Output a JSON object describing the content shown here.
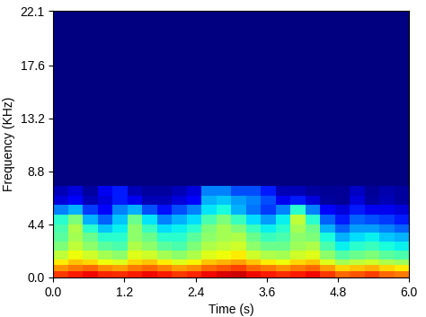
{
  "chart_data": {
    "type": "heatmap",
    "x_label": "Time (s)",
    "y_label": "Frequency (KHz)",
    "color": "jet",
    "xlim": [
      0,
      6.0
    ],
    "ylim": [
      0,
      22.1
    ],
    "xticks": [
      {
        "value": 0,
        "label": "0.0"
      },
      1.2,
      2.4,
      3.6,
      4.8,
      {
        "value": 6,
        "label": "6.0"
      }
    ],
    "yticks": [
      {
        "value": 0,
        "label": "0.0"
      },
      4.4,
      8.8,
      13.2,
      17.6,
      22.1
    ],
    "x_edges": [
      0,
      0.25,
      0.5,
      0.75,
      1.0,
      1.25,
      1.5,
      1.75,
      2.0,
      2.25,
      2.5,
      2.75,
      3.0,
      3.25,
      3.5,
      3.75,
      4.0,
      4.25,
      4.5,
      4.75,
      5.0,
      5.25,
      5.5,
      5.75,
      6.0
    ],
    "y_edges": [
      0,
      0.5,
      1.0,
      1.5,
      2.2,
      3.0,
      3.7,
      4.4,
      5.2,
      6.0,
      6.8,
      7.6,
      8.8,
      22.1
    ],
    "clim": [
      0,
      100
    ],
    "cells": [
      [
        85,
        88,
        90,
        87,
        86,
        88,
        90,
        88,
        85,
        87,
        90,
        92,
        93,
        90,
        88,
        86,
        88,
        90,
        85,
        80,
        82,
        84,
        80,
        78
      ],
      [
        75,
        78,
        80,
        76,
        74,
        78,
        80,
        77,
        74,
        76,
        80,
        82,
        84,
        80,
        78,
        75,
        78,
        80,
        74,
        68,
        70,
        72,
        68,
        66
      ],
      [
        66,
        70,
        68,
        64,
        62,
        68,
        70,
        66,
        62,
        65,
        70,
        72,
        74,
        70,
        66,
        64,
        68,
        70,
        62,
        55,
        58,
        60,
        56,
        54
      ],
      [
        58,
        64,
        60,
        55,
        52,
        62,
        60,
        55,
        52,
        56,
        62,
        64,
        66,
        60,
        56,
        55,
        60,
        62,
        52,
        45,
        48,
        50,
        46,
        44
      ],
      [
        50,
        58,
        52,
        46,
        44,
        56,
        52,
        46,
        44,
        50,
        56,
        58,
        60,
        52,
        48,
        48,
        54,
        56,
        44,
        36,
        40,
        42,
        38,
        36
      ],
      [
        46,
        55,
        48,
        40,
        40,
        52,
        48,
        40,
        40,
        46,
        52,
        55,
        56,
        48,
        42,
        44,
        52,
        50,
        38,
        30,
        34,
        36,
        32,
        30
      ],
      [
        44,
        56,
        40,
        32,
        36,
        52,
        42,
        34,
        36,
        40,
        50,
        55,
        50,
        42,
        36,
        40,
        55,
        48,
        30,
        22,
        28,
        28,
        25,
        22
      ],
      [
        40,
        50,
        30,
        22,
        32,
        48,
        35,
        25,
        30,
        34,
        44,
        50,
        42,
        34,
        28,
        36,
        58,
        40,
        22,
        15,
        22,
        20,
        18,
        15
      ],
      [
        25,
        30,
        18,
        12,
        25,
        30,
        20,
        14,
        20,
        25,
        35,
        38,
        30,
        24,
        18,
        25,
        40,
        25,
        12,
        8,
        15,
        10,
        10,
        8
      ],
      [
        8,
        12,
        5,
        8,
        15,
        10,
        5,
        5,
        8,
        12,
        30,
        32,
        28,
        25,
        20,
        10,
        15,
        8,
        3,
        2,
        8,
        3,
        5,
        3
      ],
      [
        5,
        8,
        3,
        10,
        15,
        5,
        3,
        3,
        5,
        8,
        25,
        25,
        20,
        20,
        15,
        5,
        5,
        3,
        2,
        2,
        6,
        2,
        4,
        3
      ],
      [
        0,
        0,
        0,
        0,
        0,
        0,
        0,
        0,
        0,
        0,
        0,
        0,
        0,
        0,
        0,
        0,
        0,
        0,
        0,
        0,
        0,
        0,
        0,
        0
      ],
      [
        0,
        0,
        0,
        0,
        0,
        0,
        0,
        0,
        0,
        0,
        0,
        0,
        0,
        0,
        0,
        0,
        0,
        0,
        0,
        0,
        0,
        0,
        0,
        0
      ]
    ]
  }
}
